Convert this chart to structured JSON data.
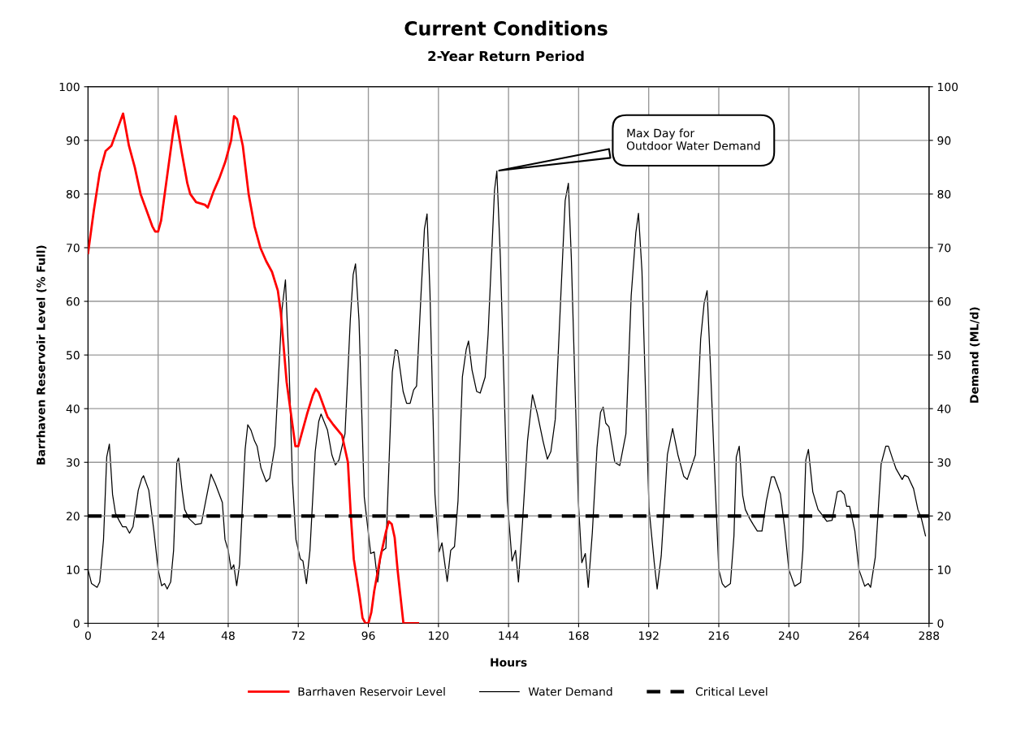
{
  "chart_data": {
    "type": "line",
    "title": "Current Conditions",
    "subtitle": "2-Year Return Period",
    "xlabel": "Hours",
    "ylabel": "Barrhaven Reservoir Level (% Full)",
    "y2label": "Demand (ML/d)",
    "xlim": [
      0,
      288
    ],
    "xticks": [
      0,
      24,
      48,
      72,
      96,
      120,
      144,
      168,
      192,
      216,
      240,
      264,
      288
    ],
    "ylim": [
      0,
      100
    ],
    "yticks": [
      0,
      10,
      20,
      30,
      40,
      50,
      60,
      70,
      80,
      90,
      100
    ],
    "y2lim": [
      0,
      100
    ],
    "y2ticks": [
      0,
      10,
      20,
      30,
      40,
      50,
      60,
      70,
      80,
      90,
      100
    ],
    "grid": true,
    "legend": "bottom",
    "marker": "none",
    "series": [
      {
        "name": "Barrhaven Reservoir Level",
        "color": "#ff0000",
        "axis": "y",
        "line_style": "solid",
        "x": [
          0,
          2,
          4,
          6,
          8,
          10,
          12,
          14,
          16,
          18,
          20,
          22,
          23,
          24,
          25,
          27,
          29,
          30,
          32,
          34,
          35,
          37,
          40,
          41,
          43,
          45,
          47,
          49,
          50,
          51,
          53,
          55,
          57,
          59,
          61,
          63,
          65,
          66,
          68,
          70,
          71,
          72,
          73,
          75,
          77,
          78,
          79,
          81,
          82,
          84,
          87,
          89,
          90,
          91,
          93,
          94,
          95,
          96,
          97,
          98,
          100,
          102,
          103,
          104,
          105,
          106,
          107,
          108,
          109,
          113
        ],
        "values": [
          69,
          77,
          84,
          88,
          89,
          92,
          95,
          89,
          85,
          80,
          77,
          74,
          73,
          73,
          75,
          83,
          91,
          94.5,
          88,
          82,
          80,
          78.5,
          78,
          77.5,
          80.5,
          83,
          86,
          90,
          94.5,
          94,
          89,
          80,
          74,
          70,
          67.5,
          65.5,
          62,
          58,
          45,
          37,
          33,
          33,
          35,
          39,
          42.5,
          43.7,
          43,
          40,
          38.5,
          37,
          35,
          30,
          20,
          12,
          5,
          1,
          0,
          0,
          2,
          6,
          12,
          17,
          19,
          18.5,
          16,
          10,
          5,
          0,
          0,
          0
        ]
      },
      {
        "name": "Water Demand",
        "color": "#000000",
        "axis": "y2",
        "line_style": "solid",
        "x": [
          0,
          1.2,
          3.1,
          4,
          5.3,
          6.4,
          7.3,
          8.4,
          9.4,
          10.6,
          11.8,
          13,
          14.2,
          15.4,
          17.2,
          18.4,
          19,
          20.8,
          22.6,
          24,
          25.2,
          26.2,
          27.1,
          28.3,
          29.3,
          30.4,
          31,
          32.2,
          33.1,
          34.6,
          36.7,
          38.8,
          40.3,
          42.1,
          43.6,
          46,
          46.9,
          48,
          49,
          49.9,
          50.9,
          51.9,
          53.8,
          54.7,
          55.8,
          57,
          57.9,
          59.2,
          61,
          62.2,
          64,
          66.4,
          67.6,
          68.8,
          70,
          71.2,
          72.7,
          73.6,
          74.8,
          76,
          77.8,
          79,
          79.8,
          82,
          83.5,
          84.7,
          85.9,
          88,
          89.8,
          90.8,
          91.6,
          92.8,
          94.6,
          96.8,
          98,
          99.2,
          100.4,
          102,
          103,
          104.2,
          105.2,
          106,
          107.9,
          109.1,
          110.3,
          111.5,
          112.5,
          114,
          115.2,
          116.1,
          117.1,
          118.8,
          120.2,
          121.2,
          123,
          124.2,
          125.5,
          126.7,
          128.2,
          129.5,
          130.3,
          131.5,
          133.1,
          134.3,
          136,
          137,
          139.2,
          140,
          141.2,
          143.6,
          145.2,
          146.4,
          147.4,
          148.8,
          150.5,
          152.2,
          153.9,
          155.8,
          157.3,
          158.5,
          160,
          161.8,
          163.4,
          164.5,
          165.5,
          167.9,
          169.1,
          170.3,
          171.3,
          172.7,
          174.3,
          175.5,
          176.4,
          177.3,
          178.4,
          180.4,
          182.1,
          184.2,
          186,
          187.6,
          188.5,
          189.7,
          192.1,
          193.9,
          194.9,
          196.3,
          198.4,
          200.2,
          202,
          204,
          205.2,
          206.8,
          208,
          209.8,
          211,
          212,
          213.1,
          214.8,
          216,
          217.2,
          218.2,
          220,
          221.2,
          222,
          223,
          224.2,
          225.1,
          226.6,
          227.8,
          229.2,
          230.8,
          232.3,
          234,
          235,
          237.1,
          238.6,
          240,
          242,
          244,
          244.8,
          245.8,
          246.7,
          248.2,
          250,
          251.8,
          253,
          254.8,
          256.6,
          257.8,
          259,
          259.8,
          260.8,
          262.6,
          264,
          266,
          267.2,
          268,
          269.6,
          271.6,
          273.2,
          274.1,
          275.5,
          276.7,
          278.8,
          279.6,
          280.8,
          282.7,
          284.2,
          285.4,
          286.8
        ],
        "values": [
          10,
          7.4,
          6.7,
          7.7,
          15.6,
          31,
          33.4,
          24,
          20.5,
          19.2,
          18,
          18,
          16.8,
          18,
          24.8,
          27,
          27.5,
          24.8,
          17,
          10,
          7,
          7.4,
          6.4,
          7.7,
          13.6,
          30,
          30.8,
          24.8,
          21.2,
          19.5,
          18.4,
          18.6,
          22.8,
          27.8,
          26,
          22.5,
          15.6,
          13.6,
          10,
          10.9,
          7,
          11,
          32.4,
          37,
          36,
          34,
          33,
          29,
          26.4,
          27,
          33,
          58.4,
          64,
          48.5,
          26.8,
          15.6,
          12,
          11.6,
          7.4,
          13.6,
          32,
          37.6,
          39,
          36,
          31.4,
          29.5,
          30.4,
          35.3,
          56.4,
          65,
          67,
          56.4,
          23.5,
          13,
          13.3,
          7.7,
          13.3,
          14,
          28.8,
          46.8,
          51,
          50.8,
          43.2,
          41,
          41,
          43.5,
          44.2,
          61,
          73.5,
          76.3,
          61.6,
          24,
          13.3,
          15,
          7.8,
          13.6,
          14.3,
          22.8,
          45.9,
          51,
          52.6,
          47.2,
          43.2,
          42.9,
          45.9,
          53.8,
          80.7,
          84.3,
          68.2,
          22.8,
          11.6,
          13.6,
          7.7,
          18.9,
          34,
          42.6,
          39,
          34,
          30.6,
          32,
          38,
          59.7,
          78.8,
          82,
          68.2,
          22.8,
          11.3,
          13,
          6.7,
          16.9,
          32.7,
          39.3,
          40.3,
          37.3,
          36.6,
          30,
          29.4,
          35.3,
          61,
          72.8,
          76.4,
          65.6,
          21.5,
          11.3,
          6.4,
          12.6,
          31.4,
          36.3,
          31.4,
          27.4,
          26.8,
          29.4,
          31.4,
          53,
          59.7,
          62,
          48.5,
          25.5,
          10,
          7.4,
          6.7,
          7.4,
          16.3,
          31,
          33,
          23.8,
          21.2,
          19.5,
          18.4,
          17.2,
          17.2,
          22.8,
          27.3,
          27.3,
          24.1,
          17.6,
          10,
          6.9,
          7.6,
          13.6,
          30.4,
          32.4,
          24.5,
          21.2,
          19.9,
          19,
          19.2,
          24.5,
          24.7,
          24,
          21.8,
          21.8,
          17.2,
          10,
          6.9,
          7.4,
          6.7,
          12.3,
          29.7,
          33,
          33,
          30.7,
          28.8,
          26.8,
          27.6,
          27.3,
          25.1,
          21.2,
          19.5,
          16.3
        ]
      }
    ],
    "ref_lines": [
      {
        "axis": "y",
        "value": 20,
        "label": "Critical Level",
        "color": "#000000",
        "line_style": "dashed"
      }
    ],
    "annotations": [
      "Max Day for\nOutdoor Water Demand"
    ]
  }
}
